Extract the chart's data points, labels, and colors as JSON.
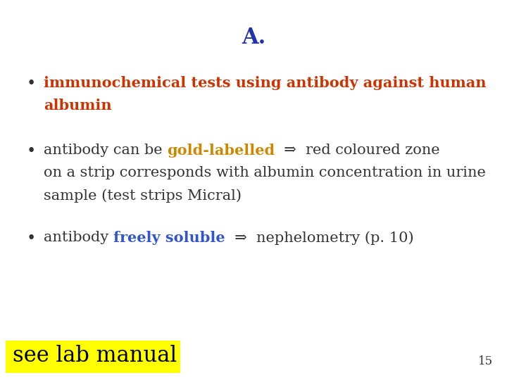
{
  "title": "A.",
  "title_color": "#2233AA",
  "title_fontsize": 22,
  "background_color": "#FFFFFF",
  "bullet_fontsize": 15,
  "bullet1_line1": "immunochemical tests using antibody against human",
  "bullet1_line2": "albumin",
  "bullet1_color": "#CC3300",
  "bullet2_pre": "antibody can be ",
  "bullet2_highlight": "gold-labelled",
  "bullet2_highlight_color": "#CC8800",
  "bullet2_post": "  ⇒  red coloured zone",
  "bullet2_line2": "on a strip corresponds with albumin concentration in urine",
  "bullet2_line3": "sample (test strips Micral)",
  "bullet2_color": "#333333",
  "bullet3_pre": "antibody ",
  "bullet3_highlight": "freely soluble",
  "bullet3_highlight_color": "#3355CC",
  "bullet3_post": "  ⇒  nephelometry (p. 10)",
  "bullet3_color": "#333333",
  "footer_text": "see lab manual",
  "footer_bg": "#FFFF00",
  "footer_color": "#000000",
  "footer_fontsize": 22,
  "page_number": "15",
  "page_number_fontsize": 12
}
